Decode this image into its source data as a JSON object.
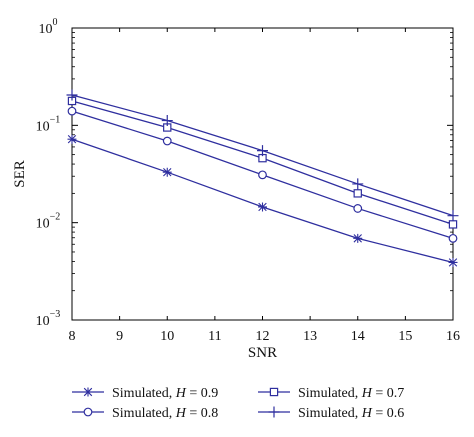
{
  "chart_data": {
    "type": "line",
    "title": "",
    "xlabel": "SNR",
    "ylabel": "SER",
    "xlim": [
      8,
      16
    ],
    "ylim": [
      0.001,
      1
    ],
    "y_scale": "log",
    "grid": false,
    "x_ticks": [
      "8",
      "9",
      "10",
      "11",
      "12",
      "13",
      "14",
      "15",
      "16"
    ],
    "y_ticks": [
      {
        "value": 1,
        "base": "10",
        "exp": "0"
      },
      {
        "value": 0.1,
        "base": "10",
        "exp": "−1"
      },
      {
        "value": 0.01,
        "base": "10",
        "exp": "−2"
      },
      {
        "value": 0.001,
        "base": "10",
        "exp": "−3"
      }
    ],
    "series_color": "#2f2f9f",
    "legend_position": "bottom",
    "series": [
      {
        "name_prefix": "Simulated, ",
        "name_var": "H",
        "name_suffix": " = 0.9",
        "marker": "star",
        "x": [
          8,
          10,
          12,
          14,
          16
        ],
        "values": [
          0.072,
          0.033,
          0.0145,
          0.0069,
          0.0039
        ]
      },
      {
        "name_prefix": "Simulated, ",
        "name_var": "H",
        "name_suffix": " = 0.8",
        "marker": "circle",
        "x": [
          8,
          10,
          12,
          14,
          16
        ],
        "values": [
          0.14,
          0.069,
          0.031,
          0.014,
          0.0069
        ]
      },
      {
        "name_prefix": "Simulated, ",
        "name_var": "H",
        "name_suffix": " = 0.7",
        "marker": "square",
        "x": [
          8,
          10,
          12,
          14,
          16
        ],
        "values": [
          0.178,
          0.095,
          0.046,
          0.02,
          0.0096
        ]
      },
      {
        "name_prefix": "Simulated, ",
        "name_var": "H",
        "name_suffix": " = 0.6",
        "marker": "plus",
        "x": [
          8,
          10,
          12,
          14,
          16
        ],
        "values": [
          0.205,
          0.112,
          0.055,
          0.025,
          0.0118
        ]
      }
    ]
  }
}
